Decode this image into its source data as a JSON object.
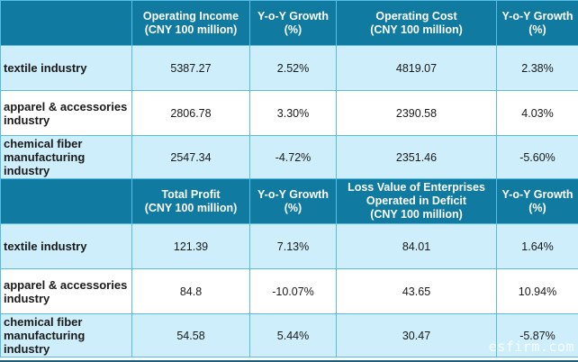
{
  "tables": [
    {
      "headers": [
        "",
        "Operating Income\n(CNY 100 million)",
        "Y-o-Y Growth\n(%)",
        "Operating Cost\n(CNY 100 million)",
        "Y-o-Y Growth\n(%)"
      ],
      "rows": [
        {
          "label": "textile industry",
          "values": [
            "5387.27",
            "2.52%",
            "4819.07",
            "2.38%"
          ]
        },
        {
          "label": "apparel & accessories industry",
          "values": [
            "2806.78",
            "3.30%",
            "2390.58",
            "4.03%"
          ]
        },
        {
          "label": "chemical fiber manufacturing industry",
          "values": [
            "2547.34",
            "-4.72%",
            "2351.46",
            "-5.60%"
          ]
        }
      ]
    },
    {
      "headers": [
        "",
        "Total Profit\n(CNY 100 million)",
        "Y-o-Y Growth\n(%)",
        "Loss Value of Enterprises\nOperated in Deficit\n(CNY 100 million)",
        "Y-o-Y Growth\n(%)"
      ],
      "rows": [
        {
          "label": "textile industry",
          "values": [
            "121.39",
            "7.13%",
            "84.01",
            "1.64%"
          ]
        },
        {
          "label": "apparel & accessories industry",
          "values": [
            "84.8",
            "-10.07%",
            "43.65",
            "10.94%"
          ]
        },
        {
          "label": "chemical fiber manufacturing industry",
          "values": [
            "54.58",
            "5.44%",
            "30.47",
            "-5.87%"
          ]
        }
      ]
    }
  ],
  "watermark": "esfirm.com",
  "colors": {
    "header_bg": "#107aa0",
    "row_blue": "#cdeefa",
    "row_white": "#ffffff",
    "border": "#56bde6"
  }
}
